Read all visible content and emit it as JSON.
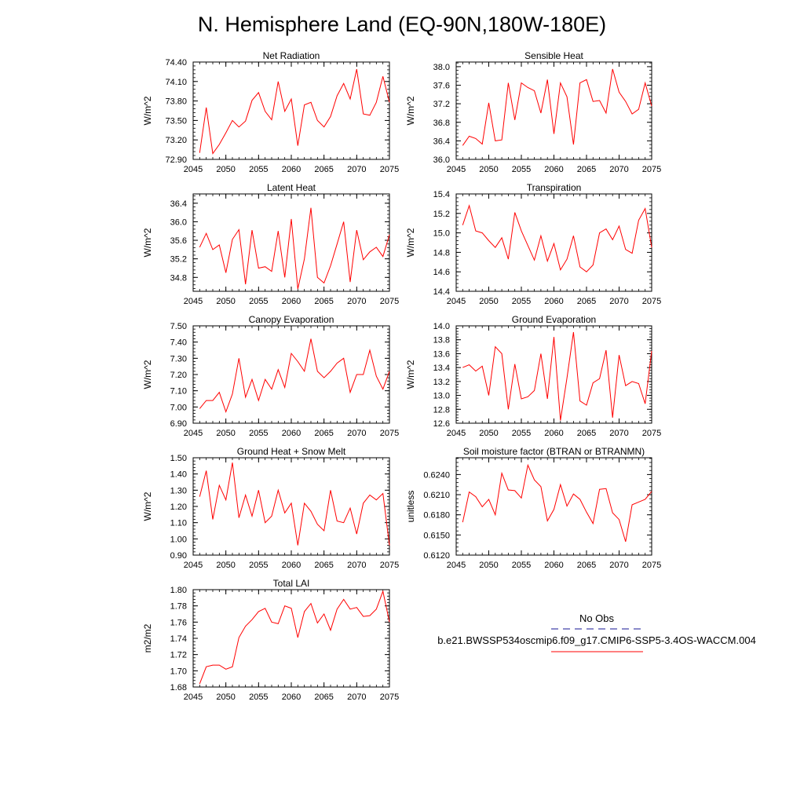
{
  "page_title": "N. Hemisphere Land (EQ-90N,180W-180E)",
  "legend": {
    "obs_label": "No Obs",
    "obs_color": "#4444aa",
    "case_label": "b.e21.BWSSP534oscmip6.f09_g17.CMIP6-SSP5-3.4OS-WACCM.004",
    "case_color": "#ff0000"
  },
  "line_color": "#ff0000",
  "chart_data": [
    {
      "type": "line",
      "title": "Net Radiation",
      "xlabel": "",
      "ylabel": "W/m^2",
      "xlim": [
        2045,
        2075
      ],
      "ylim": [
        72.9,
        74.4
      ],
      "xticks": [
        2045,
        2050,
        2055,
        2060,
        2065,
        2070,
        2075
      ],
      "xtick_labels": [
        "2045",
        "2050",
        "2055",
        "2060",
        "2065",
        "2070",
        "2075"
      ],
      "yticks": [
        72.9,
        73.2,
        73.5,
        73.8,
        74.1,
        74.4
      ],
      "ytick_labels": [
        "72.90",
        "73.20",
        "73.50",
        "73.80",
        "74.10",
        "74.40"
      ],
      "x": [
        2046,
        2047,
        2048,
        2049,
        2050,
        2051,
        2052,
        2053,
        2054,
        2055,
        2056,
        2057,
        2058,
        2059,
        2060,
        2061,
        2062,
        2063,
        2064,
        2065,
        2066,
        2067,
        2068,
        2069,
        2070,
        2071,
        2072,
        2073,
        2074,
        2075
      ],
      "values": [
        73.0,
        73.7,
        72.99,
        73.13,
        73.31,
        73.5,
        73.4,
        73.49,
        73.81,
        73.93,
        73.64,
        73.51,
        74.1,
        73.64,
        73.83,
        73.11,
        73.74,
        73.78,
        73.5,
        73.4,
        73.56,
        73.88,
        74.07,
        73.83,
        74.29,
        73.6,
        73.58,
        73.78,
        74.18,
        73.78
      ]
    },
    {
      "type": "line",
      "title": "Sensible Heat",
      "xlabel": "",
      "ylabel": "W/m^2",
      "xlim": [
        2045,
        2075
      ],
      "ylim": [
        36.0,
        38.1
      ],
      "xticks": [
        2045,
        2050,
        2055,
        2060,
        2065,
        2070,
        2075
      ],
      "xtick_labels": [
        "2045",
        "2050",
        "2055",
        "2060",
        "2065",
        "2070",
        "2075"
      ],
      "yticks": [
        36.0,
        36.4,
        36.8,
        37.2,
        37.6,
        38.0
      ],
      "ytick_labels": [
        "36.0",
        "36.4",
        "36.8",
        "37.2",
        "37.6",
        "38.0"
      ],
      "x": [
        2046,
        2047,
        2048,
        2049,
        2050,
        2051,
        2052,
        2053,
        2054,
        2055,
        2056,
        2057,
        2058,
        2059,
        2060,
        2061,
        2062,
        2063,
        2064,
        2065,
        2066,
        2067,
        2068,
        2069,
        2070,
        2071,
        2072,
        2073,
        2074,
        2075
      ],
      "values": [
        36.3,
        36.5,
        36.45,
        36.33,
        37.22,
        36.4,
        36.42,
        37.65,
        36.85,
        37.65,
        37.55,
        37.48,
        37.0,
        37.72,
        36.55,
        37.65,
        37.35,
        36.32,
        37.65,
        37.72,
        37.25,
        37.27,
        37.0,
        37.95,
        37.45,
        37.25,
        36.98,
        37.08,
        37.65,
        37.15
      ]
    },
    {
      "type": "line",
      "title": "Latent Heat",
      "xlabel": "",
      "ylabel": "W/m^2",
      "xlim": [
        2045,
        2075
      ],
      "ylim": [
        34.5,
        36.6
      ],
      "xticks": [
        2045,
        2050,
        2055,
        2060,
        2065,
        2070,
        2075
      ],
      "xtick_labels": [
        "2045",
        "2050",
        "2055",
        "2060",
        "2065",
        "2070",
        "2075"
      ],
      "yticks": [
        34.8,
        35.2,
        35.6,
        36.0,
        36.4
      ],
      "ytick_labels": [
        "34.8",
        "35.2",
        "35.6",
        "36.0",
        "36.4"
      ],
      "x": [
        2046,
        2047,
        2048,
        2049,
        2050,
        2051,
        2052,
        2053,
        2054,
        2055,
        2056,
        2057,
        2058,
        2059,
        2060,
        2061,
        2062,
        2063,
        2064,
        2065,
        2066,
        2067,
        2068,
        2069,
        2070,
        2071,
        2072,
        2073,
        2074,
        2075
      ],
      "values": [
        35.45,
        35.75,
        35.4,
        35.5,
        34.9,
        35.62,
        35.83,
        34.65,
        35.82,
        35.0,
        35.03,
        34.93,
        35.8,
        34.8,
        36.06,
        34.55,
        35.2,
        36.3,
        34.8,
        34.68,
        35.05,
        35.52,
        36.0,
        34.7,
        35.82,
        35.18,
        35.35,
        35.45,
        35.25,
        35.72
      ]
    },
    {
      "type": "line",
      "title": "Transpiration",
      "xlabel": "",
      "ylabel": "W/m^2",
      "xlim": [
        2045,
        2075
      ],
      "ylim": [
        14.4,
        15.4
      ],
      "xticks": [
        2045,
        2050,
        2055,
        2060,
        2065,
        2070,
        2075
      ],
      "xtick_labels": [
        "2045",
        "2050",
        "2055",
        "2060",
        "2065",
        "2070",
        "2075"
      ],
      "yticks": [
        14.4,
        14.6,
        14.8,
        15.0,
        15.2,
        15.4
      ],
      "ytick_labels": [
        "14.4",
        "14.6",
        "14.8",
        "15.0",
        "15.2",
        "15.4"
      ],
      "x": [
        2046,
        2047,
        2048,
        2049,
        2050,
        2051,
        2052,
        2053,
        2054,
        2055,
        2056,
        2057,
        2058,
        2059,
        2060,
        2061,
        2062,
        2063,
        2064,
        2065,
        2066,
        2067,
        2068,
        2069,
        2070,
        2071,
        2072,
        2073,
        2074,
        2075
      ],
      "values": [
        15.08,
        15.28,
        15.02,
        15.0,
        14.92,
        14.85,
        14.95,
        14.73,
        15.21,
        15.02,
        14.87,
        14.72,
        14.97,
        14.71,
        14.89,
        14.62,
        14.73,
        14.97,
        14.65,
        14.6,
        14.67,
        15.0,
        15.04,
        14.93,
        15.07,
        14.83,
        14.79,
        15.13,
        15.25,
        14.85
      ]
    },
    {
      "type": "line",
      "title": "Canopy Evaporation",
      "xlabel": "",
      "ylabel": "W/m^2",
      "xlim": [
        2045,
        2075
      ],
      "ylim": [
        6.9,
        7.5
      ],
      "xticks": [
        2045,
        2050,
        2055,
        2060,
        2065,
        2070,
        2075
      ],
      "xtick_labels": [
        "2045",
        "2050",
        "2055",
        "2060",
        "2065",
        "2070",
        "2075"
      ],
      "yticks": [
        6.9,
        7.0,
        7.1,
        7.2,
        7.3,
        7.4,
        7.5
      ],
      "ytick_labels": [
        "6.90",
        "7.00",
        "7.10",
        "7.20",
        "7.30",
        "7.40",
        "7.50"
      ],
      "x": [
        2046,
        2047,
        2048,
        2049,
        2050,
        2051,
        2052,
        2053,
        2054,
        2055,
        2056,
        2057,
        2058,
        2059,
        2060,
        2061,
        2062,
        2063,
        2064,
        2065,
        2066,
        2067,
        2068,
        2069,
        2070,
        2071,
        2072,
        2073,
        2074,
        2075
      ],
      "values": [
        6.99,
        7.04,
        7.04,
        7.09,
        6.97,
        7.08,
        7.3,
        7.06,
        7.17,
        7.04,
        7.17,
        7.11,
        7.23,
        7.12,
        7.33,
        7.28,
        7.22,
        7.42,
        7.22,
        7.18,
        7.22,
        7.27,
        7.3,
        7.09,
        7.2,
        7.2,
        7.35,
        7.19,
        7.11,
        7.22
      ]
    },
    {
      "type": "line",
      "title": "Ground Evaporation",
      "xlabel": "",
      "ylabel": "W/m^2",
      "xlim": [
        2045,
        2075
      ],
      "ylim": [
        12.6,
        14.0
      ],
      "xticks": [
        2045,
        2050,
        2055,
        2060,
        2065,
        2070,
        2075
      ],
      "xtick_labels": [
        "2045",
        "2050",
        "2055",
        "2060",
        "2065",
        "2070",
        "2075"
      ],
      "yticks": [
        12.6,
        12.8,
        13.0,
        13.2,
        13.4,
        13.6,
        13.8,
        14.0
      ],
      "ytick_labels": [
        "12.6",
        "12.8",
        "13.0",
        "13.2",
        "13.4",
        "13.6",
        "13.8",
        "14.0"
      ],
      "x": [
        2046,
        2047,
        2048,
        2049,
        2050,
        2051,
        2052,
        2053,
        2054,
        2055,
        2056,
        2057,
        2058,
        2059,
        2060,
        2061,
        2062,
        2063,
        2064,
        2065,
        2066,
        2067,
        2068,
        2069,
        2070,
        2071,
        2072,
        2073,
        2074,
        2075
      ],
      "values": [
        13.4,
        13.44,
        13.35,
        13.42,
        13.0,
        13.7,
        13.6,
        12.8,
        13.45,
        12.95,
        12.98,
        13.07,
        13.6,
        12.95,
        13.84,
        12.64,
        13.25,
        13.91,
        12.92,
        12.86,
        13.18,
        13.24,
        13.65,
        12.68,
        13.58,
        13.14,
        13.2,
        13.17,
        12.88,
        13.64
      ]
    },
    {
      "type": "line",
      "title": "Ground Heat + Snow Melt",
      "xlabel": "",
      "ylabel": "W/m^2",
      "xlim": [
        2045,
        2075
      ],
      "ylim": [
        0.9,
        1.5
      ],
      "xticks": [
        2045,
        2050,
        2055,
        2060,
        2065,
        2070,
        2075
      ],
      "xtick_labels": [
        "2045",
        "2050",
        "2055",
        "2060",
        "2065",
        "2070",
        "2075"
      ],
      "yticks": [
        0.9,
        1.0,
        1.1,
        1.2,
        1.3,
        1.4,
        1.5
      ],
      "ytick_labels": [
        "0.90",
        "1.00",
        "1.10",
        "1.20",
        "1.30",
        "1.40",
        "1.50"
      ],
      "x": [
        2046,
        2047,
        2048,
        2049,
        2050,
        2051,
        2052,
        2053,
        2054,
        2055,
        2056,
        2057,
        2058,
        2059,
        2060,
        2061,
        2062,
        2063,
        2064,
        2065,
        2066,
        2067,
        2068,
        2069,
        2070,
        2071,
        2072,
        2073,
        2074,
        2075
      ],
      "values": [
        1.26,
        1.42,
        1.12,
        1.33,
        1.24,
        1.47,
        1.13,
        1.27,
        1.14,
        1.3,
        1.1,
        1.14,
        1.3,
        1.16,
        1.22,
        0.96,
        1.22,
        1.17,
        1.09,
        1.05,
        1.3,
        1.11,
        1.1,
        1.19,
        1.03,
        1.22,
        1.27,
        1.24,
        1.28,
        0.96
      ]
    },
    {
      "type": "line",
      "title": "Soil moisture factor (BTRAN or BTRANMN)",
      "xlabel": "",
      "ylabel": "unitless",
      "xlim": [
        2045,
        2075
      ],
      "ylim": [
        0.612,
        0.6265
      ],
      "xticks": [
        2045,
        2050,
        2055,
        2060,
        2065,
        2070,
        2075
      ],
      "xtick_labels": [
        "2045",
        "2050",
        "2055",
        "2060",
        "2065",
        "2070",
        "2075"
      ],
      "yticks": [
        0.612,
        0.615,
        0.618,
        0.621,
        0.624
      ],
      "ytick_labels": [
        "0.6120",
        "0.6150",
        "0.6180",
        "0.6210",
        "0.6240"
      ],
      "x": [
        2046,
        2047,
        2048,
        2049,
        2050,
        2051,
        2052,
        2053,
        2054,
        2055,
        2056,
        2057,
        2058,
        2059,
        2060,
        2061,
        2062,
        2063,
        2064,
        2065,
        2066,
        2067,
        2068,
        2069,
        2070,
        2071,
        2072,
        2073,
        2074,
        2075
      ],
      "values": [
        0.6169,
        0.6214,
        0.6207,
        0.6192,
        0.6203,
        0.618,
        0.6242,
        0.6217,
        0.6216,
        0.6205,
        0.6254,
        0.6232,
        0.6222,
        0.6171,
        0.6188,
        0.6225,
        0.6193,
        0.6211,
        0.6203,
        0.6184,
        0.6167,
        0.6218,
        0.6219,
        0.6183,
        0.6173,
        0.614,
        0.6195,
        0.6199,
        0.6203,
        0.6215
      ]
    },
    {
      "type": "line",
      "title": "Total LAI",
      "xlabel": "",
      "ylabel": "m2/m2",
      "xlim": [
        2045,
        2075
      ],
      "ylim": [
        1.68,
        1.8
      ],
      "xticks": [
        2045,
        2050,
        2055,
        2060,
        2065,
        2070,
        2075
      ],
      "xtick_labels": [
        "2045",
        "2050",
        "2055",
        "2060",
        "2065",
        "2070",
        "2075"
      ],
      "yticks": [
        1.68,
        1.7,
        1.72,
        1.74,
        1.76,
        1.78,
        1.8
      ],
      "ytick_labels": [
        "1.68",
        "1.70",
        "1.72",
        "1.74",
        "1.76",
        "1.78",
        "1.80"
      ],
      "x": [
        2046,
        2047,
        2048,
        2049,
        2050,
        2051,
        2052,
        2053,
        2054,
        2055,
        2056,
        2057,
        2058,
        2059,
        2060,
        2061,
        2062,
        2063,
        2064,
        2065,
        2066,
        2067,
        2068,
        2069,
        2070,
        2071,
        2072,
        2073,
        2074,
        2075
      ],
      "values": [
        1.684,
        1.705,
        1.707,
        1.707,
        1.702,
        1.705,
        1.741,
        1.755,
        1.763,
        1.773,
        1.777,
        1.76,
        1.758,
        1.78,
        1.777,
        1.741,
        1.773,
        1.783,
        1.759,
        1.77,
        1.75,
        1.776,
        1.788,
        1.776,
        1.778,
        1.767,
        1.768,
        1.776,
        1.798,
        1.76
      ]
    }
  ]
}
